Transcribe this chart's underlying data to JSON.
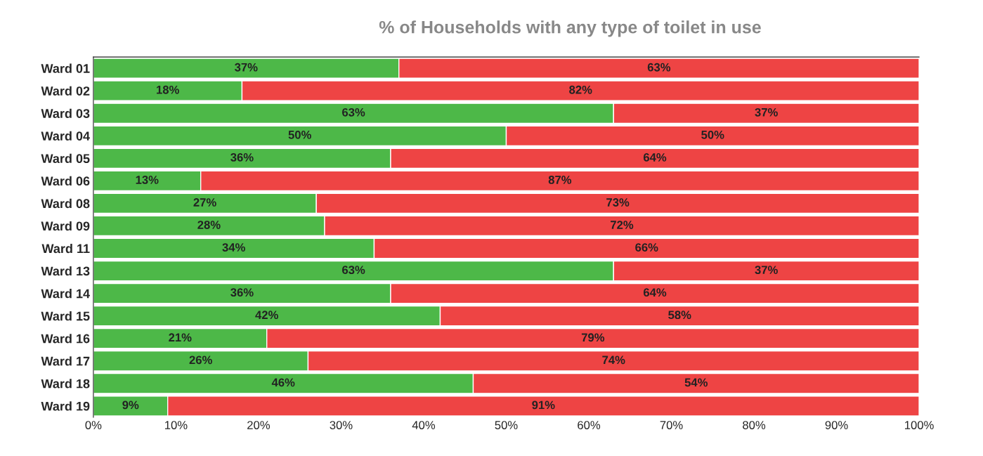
{
  "chart_data": {
    "type": "bar",
    "orientation": "horizontal",
    "stacked": true,
    "title": "% of Households with any type of toilet in use",
    "categories": [
      "Ward 01",
      "Ward 02",
      "Ward 03",
      "Ward 04",
      "Ward 05",
      "Ward 06",
      "Ward 08",
      "Ward 09",
      "Ward 11",
      "Ward 13",
      "Ward 14",
      "Ward 15",
      "Ward 16",
      "Ward 17",
      "Ward 18",
      "Ward 19"
    ],
    "series": [
      {
        "color": "#4db848",
        "values": [
          37,
          18,
          63,
          50,
          36,
          13,
          27,
          28,
          34,
          63,
          36,
          42,
          21,
          26,
          46,
          9
        ],
        "value_labels": [
          "37%",
          "18%",
          "63%",
          "50%",
          "36%",
          "13%",
          "27%",
          "28%",
          "34%",
          "63%",
          "36%",
          "42%",
          "21%",
          "26%",
          "46%",
          "9%"
        ]
      },
      {
        "color": "#ee4444",
        "values": [
          63,
          82,
          37,
          50,
          64,
          87,
          73,
          72,
          66,
          37,
          64,
          58,
          79,
          74,
          54,
          91
        ],
        "value_labels": [
          "63%",
          "82%",
          "37%",
          "50%",
          "64%",
          "87%",
          "73%",
          "72%",
          "66%",
          "37%",
          "64%",
          "58%",
          "79%",
          "74%",
          "54%",
          "91%"
        ]
      }
    ],
    "xlim": [
      0,
      100
    ],
    "xticks": [
      {
        "value": 0,
        "label": "0%"
      },
      {
        "value": 10,
        "label": "10%"
      },
      {
        "value": 20,
        "label": "20%"
      },
      {
        "value": 30,
        "label": "30%"
      },
      {
        "value": 40,
        "label": "40%"
      },
      {
        "value": 50,
        "label": "50%"
      },
      {
        "value": 60,
        "label": "60%"
      },
      {
        "value": 70,
        "label": "70%"
      },
      {
        "value": 80,
        "label": "80%"
      },
      {
        "value": 90,
        "label": "90%"
      },
      {
        "value": 100,
        "label": "100%"
      }
    ],
    "grid": false,
    "legend": false
  }
}
